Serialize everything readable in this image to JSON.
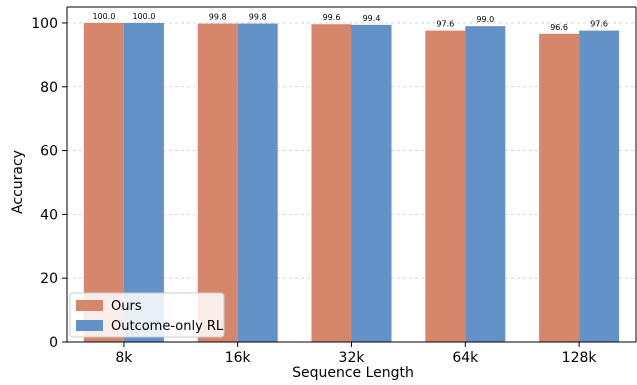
{
  "chart_data": {
    "type": "bar",
    "title": "",
    "xlabel": "Sequence Length",
    "ylabel": "Accuracy",
    "categories": [
      "8k",
      "16k",
      "32k",
      "64k",
      "128k"
    ],
    "ylim": [
      0,
      105
    ],
    "yticks": [
      0,
      20,
      40,
      60,
      80,
      100
    ],
    "grid": "horizontal-dashed",
    "legend_position": "bottom-left",
    "series": [
      {
        "name": "Ours",
        "color": "#D6876B",
        "values": [
          100.0,
          99.8,
          99.6,
          97.6,
          96.6
        ],
        "labels": [
          "100.0",
          "99.8",
          "99.6",
          "97.6",
          "96.6"
        ]
      },
      {
        "name": "Outcome-only RL",
        "color": "#6392C9",
        "values": [
          100.0,
          99.8,
          99.4,
          99.0,
          97.6
        ],
        "labels": [
          "100.0",
          "99.8",
          "99.4",
          "99.0",
          "97.6"
        ]
      }
    ]
  }
}
